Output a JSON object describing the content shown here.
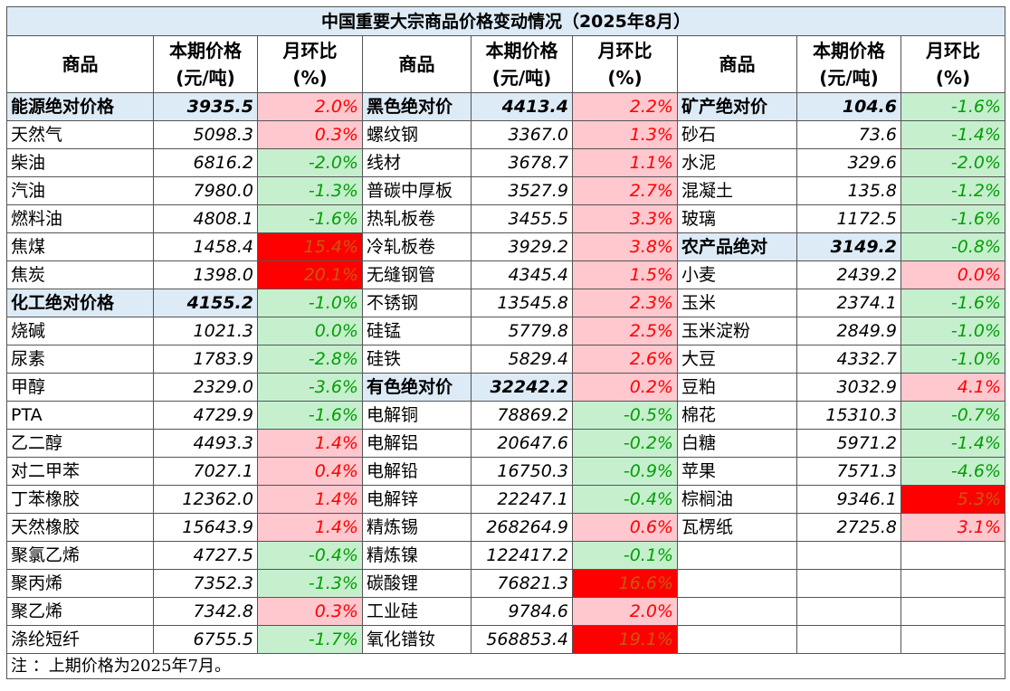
{
  "title": "中国重要大宗商品价格变动情况（2025年8月）",
  "headers": [
    "商品",
    "本期价格\n(元/吨)",
    "月环比\n(%)"
  ],
  "sections": [
    {
      "rows": [
        {
          "name": "能源绝对价格",
          "price": "3935.5",
          "change": "2.0%",
          "tone": "up",
          "group": true
        },
        {
          "name": "天然气",
          "price": "5098.3",
          "change": "0.3%",
          "tone": "up"
        },
        {
          "name": "柴油",
          "price": "6816.2",
          "change": "-2.0%",
          "tone": "down"
        },
        {
          "name": "汽油",
          "price": "7980.0",
          "change": "-1.3%",
          "tone": "down"
        },
        {
          "name": "燃料油",
          "price": "4808.1",
          "change": "-1.6%",
          "tone": "down"
        },
        {
          "name": "焦煤",
          "price": "1458.4",
          "change": "15.4%",
          "tone": "hot"
        },
        {
          "name": "焦炭",
          "price": "1398.0",
          "change": "20.1%",
          "tone": "hot"
        },
        {
          "name": "化工绝对价格",
          "price": "4155.2",
          "change": "-1.0%",
          "tone": "down",
          "group": true
        },
        {
          "name": "烧碱",
          "price": "1021.3",
          "change": "0.0%",
          "tone": "down"
        },
        {
          "name": "尿素",
          "price": "1783.9",
          "change": "-2.8%",
          "tone": "down"
        },
        {
          "name": "甲醇",
          "price": "2329.0",
          "change": "-3.6%",
          "tone": "down"
        },
        {
          "name": "PTA",
          "price": "4729.9",
          "change": "-1.6%",
          "tone": "down"
        },
        {
          "name": "乙二醇",
          "price": "4493.3",
          "change": "1.4%",
          "tone": "up"
        },
        {
          "name": "对二甲苯",
          "price": "7027.1",
          "change": "0.4%",
          "tone": "up"
        },
        {
          "name": "丁苯橡胶",
          "price": "12362.0",
          "change": "1.4%",
          "tone": "up"
        },
        {
          "name": "天然橡胶",
          "price": "15643.9",
          "change": "1.4%",
          "tone": "up"
        },
        {
          "name": "聚氯乙烯",
          "price": "4727.5",
          "change": "-0.4%",
          "tone": "down"
        },
        {
          "name": "聚丙烯",
          "price": "7352.3",
          "change": "-1.3%",
          "tone": "down"
        },
        {
          "name": "聚乙烯",
          "price": "7342.8",
          "change": "0.3%",
          "tone": "up"
        },
        {
          "name": "涤纶短纤",
          "price": "6755.5",
          "change": "-1.7%",
          "tone": "down"
        }
      ]
    },
    {
      "rows": [
        {
          "name": "黑色绝对价",
          "price": "4413.4",
          "change": "2.2%",
          "tone": "up",
          "group": true
        },
        {
          "name": "螺纹钢",
          "price": "3367.0",
          "change": "1.3%",
          "tone": "up"
        },
        {
          "name": "线材",
          "price": "3678.7",
          "change": "1.1%",
          "tone": "up"
        },
        {
          "name": "普碳中厚板",
          "price": "3527.9",
          "change": "2.7%",
          "tone": "up"
        },
        {
          "name": "热轧板卷",
          "price": "3455.5",
          "change": "3.3%",
          "tone": "up"
        },
        {
          "name": "冷轧板卷",
          "price": "3929.2",
          "change": "3.8%",
          "tone": "up"
        },
        {
          "name": "无缝钢管",
          "price": "4345.4",
          "change": "1.5%",
          "tone": "up"
        },
        {
          "name": "不锈钢",
          "price": "13545.8",
          "change": "2.3%",
          "tone": "up"
        },
        {
          "name": "硅锰",
          "price": "5779.8",
          "change": "2.5%",
          "tone": "up"
        },
        {
          "name": "硅铁",
          "price": "5829.4",
          "change": "2.6%",
          "tone": "up"
        },
        {
          "name": "有色绝对价",
          "price": "32242.2",
          "change": "0.2%",
          "tone": "up",
          "group": true
        },
        {
          "name": "电解铜",
          "price": "78869.2",
          "change": "-0.5%",
          "tone": "down"
        },
        {
          "name": "电解铝",
          "price": "20647.6",
          "change": "-0.2%",
          "tone": "down"
        },
        {
          "name": "电解铅",
          "price": "16750.3",
          "change": "-0.9%",
          "tone": "down"
        },
        {
          "name": "电解锌",
          "price": "22247.1",
          "change": "-0.4%",
          "tone": "down"
        },
        {
          "name": "精炼锡",
          "price": "268264.9",
          "change": "0.6%",
          "tone": "up"
        },
        {
          "name": "精炼镍",
          "price": "122417.2",
          "change": "-0.1%",
          "tone": "down"
        },
        {
          "name": "碳酸锂",
          "price": "76821.3",
          "change": "16.6%",
          "tone": "hot"
        },
        {
          "name": "工业硅",
          "price": "9784.6",
          "change": "2.0%",
          "tone": "up"
        },
        {
          "name": "氧化镨钕",
          "price": "568853.4",
          "change": "19.1%",
          "tone": "hot"
        }
      ]
    },
    {
      "rows": [
        {
          "name": "矿产绝对价",
          "price": "104.6",
          "change": "-1.6%",
          "tone": "down",
          "group": true
        },
        {
          "name": "砂石",
          "price": "73.6",
          "change": "-1.4%",
          "tone": "down"
        },
        {
          "name": "水泥",
          "price": "329.6",
          "change": "-2.0%",
          "tone": "down"
        },
        {
          "name": "混凝土",
          "price": "135.8",
          "change": "-1.2%",
          "tone": "down"
        },
        {
          "name": "玻璃",
          "price": "1172.5",
          "change": "-1.6%",
          "tone": "down"
        },
        {
          "name": "农产品绝对",
          "price": "3149.2",
          "change": "-0.8%",
          "tone": "down",
          "group": true
        },
        {
          "name": "小麦",
          "price": "2439.2",
          "change": "0.0%",
          "tone": "up"
        },
        {
          "name": "玉米",
          "price": "2374.1",
          "change": "-1.6%",
          "tone": "down"
        },
        {
          "name": "玉米淀粉",
          "price": "2849.9",
          "change": "-1.0%",
          "tone": "down"
        },
        {
          "name": "大豆",
          "price": "4332.7",
          "change": "-1.0%",
          "tone": "down"
        },
        {
          "name": "豆粕",
          "price": "3032.9",
          "change": "4.1%",
          "tone": "up"
        },
        {
          "name": "棉花",
          "price": "15310.3",
          "change": "-0.7%",
          "tone": "down"
        },
        {
          "name": "白糖",
          "price": "5971.2",
          "change": "-1.4%",
          "tone": "down"
        },
        {
          "name": "苹果",
          "price": "7571.3",
          "change": "-4.6%",
          "tone": "down"
        },
        {
          "name": "棕榈油",
          "price": "9346.1",
          "change": "5.3%",
          "tone": "hot"
        },
        {
          "name": "瓦楞纸",
          "price": "2725.8",
          "change": "3.1%",
          "tone": "up"
        }
      ]
    }
  ],
  "footnote": "注 ：上期价格为2025年7月。"
}
